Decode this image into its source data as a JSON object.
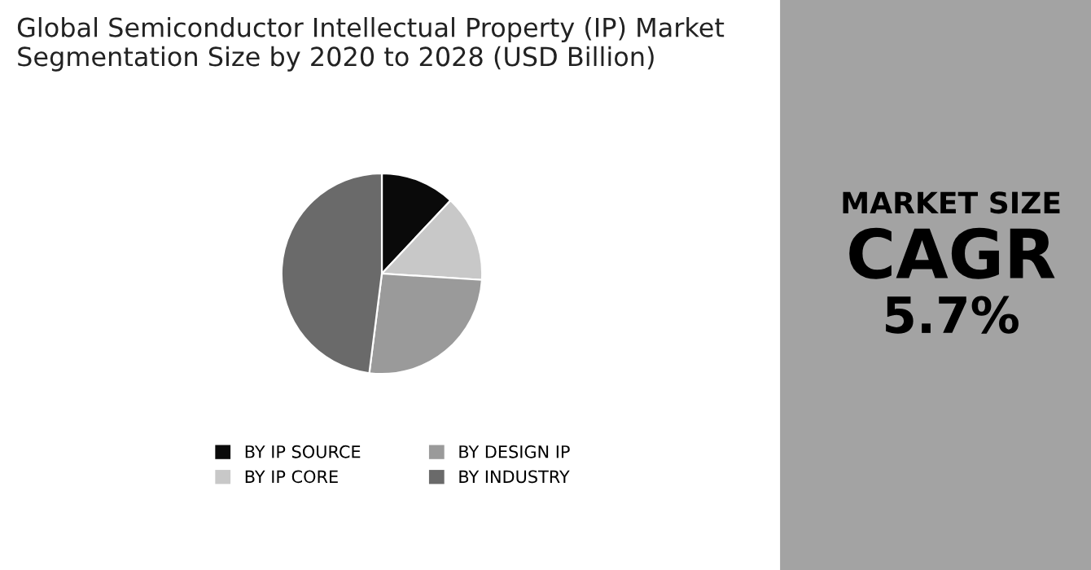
{
  "chart_data": [
    {
      "type": "pie",
      "title": "Global Semiconductor Intellectual Property (IP) Market\nSegmentation Size by 2020 to 2028 (USD Billion)",
      "categories": [
        "BY IP SOURCE",
        "BY IP CORE",
        "BY DESIGN IP",
        "BY INDUSTRY"
      ],
      "values": [
        12,
        14,
        26,
        48
      ],
      "colors": [
        "#0a0a0a",
        "#c8c8c8",
        "#9a9a9a",
        "#6a6a6a"
      ],
      "legend": "bottom"
    },
    {
      "type": "other",
      "annotations": [
        "MARKET SIZE",
        "CAGR",
        "5.7%"
      ]
    }
  ]
}
